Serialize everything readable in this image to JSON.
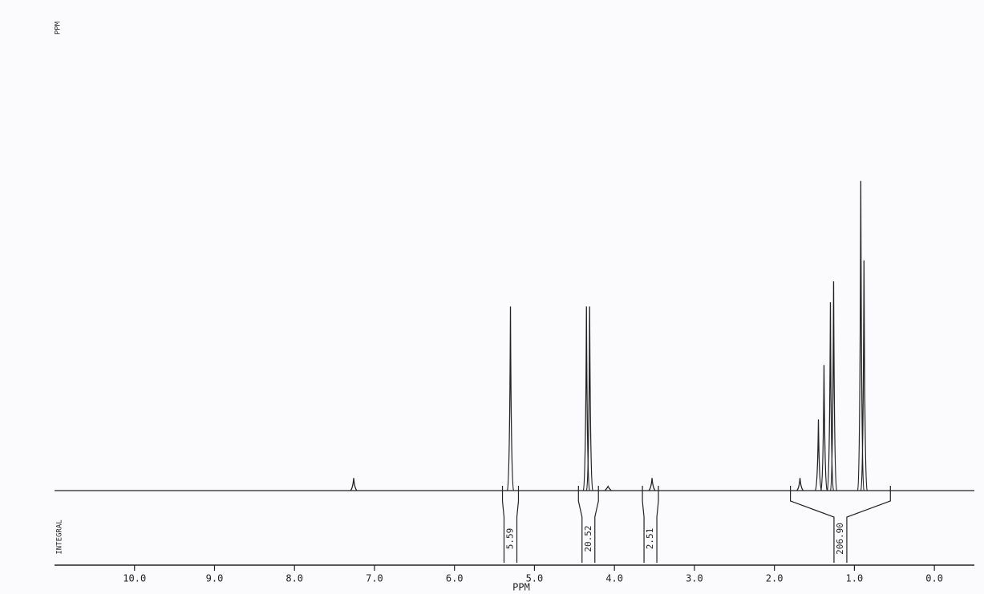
{
  "chart_data": {
    "type": "nmr",
    "top_label": "PPM",
    "integral_label": "INTEGRAL",
    "x_label": "PPM",
    "xlim": [
      11.0,
      -0.5
    ],
    "xticks": [
      {
        "value": 10,
        "label": "10.0"
      },
      {
        "value": 9,
        "label": "9.0"
      },
      {
        "value": 8,
        "label": "8.0"
      },
      {
        "value": 7,
        "label": "7.0"
      },
      {
        "value": 6,
        "label": "6.0"
      },
      {
        "value": 5,
        "label": "5.0"
      },
      {
        "value": 4,
        "label": "4.0"
      },
      {
        "value": 3,
        "label": "3.0"
      },
      {
        "value": 2,
        "label": "2.0"
      },
      {
        "value": 1,
        "label": "1.0"
      },
      {
        "value": 0,
        "label": "0.0"
      }
    ],
    "ylim": [
      0,
      100
    ],
    "peaks": {
      "x": [
        7.26,
        5.3,
        4.35,
        4.31,
        4.08,
        3.53,
        1.68,
        1.45,
        1.38,
        1.3,
        1.26,
        0.92,
        0.88
      ],
      "values": [
        3,
        44,
        44,
        44,
        1,
        3,
        3,
        17,
        30,
        45,
        50,
        74,
        55
      ]
    },
    "integrals": {
      "from": [
        5.4,
        4.45,
        3.65,
        1.8
      ],
      "to": [
        5.2,
        4.2,
        3.45,
        0.55
      ],
      "values": [
        5.59,
        20.52,
        2.51,
        206.9
      ],
      "value_labels": [
        "5.59",
        "20.52",
        "2.51",
        "206.90"
      ]
    }
  }
}
